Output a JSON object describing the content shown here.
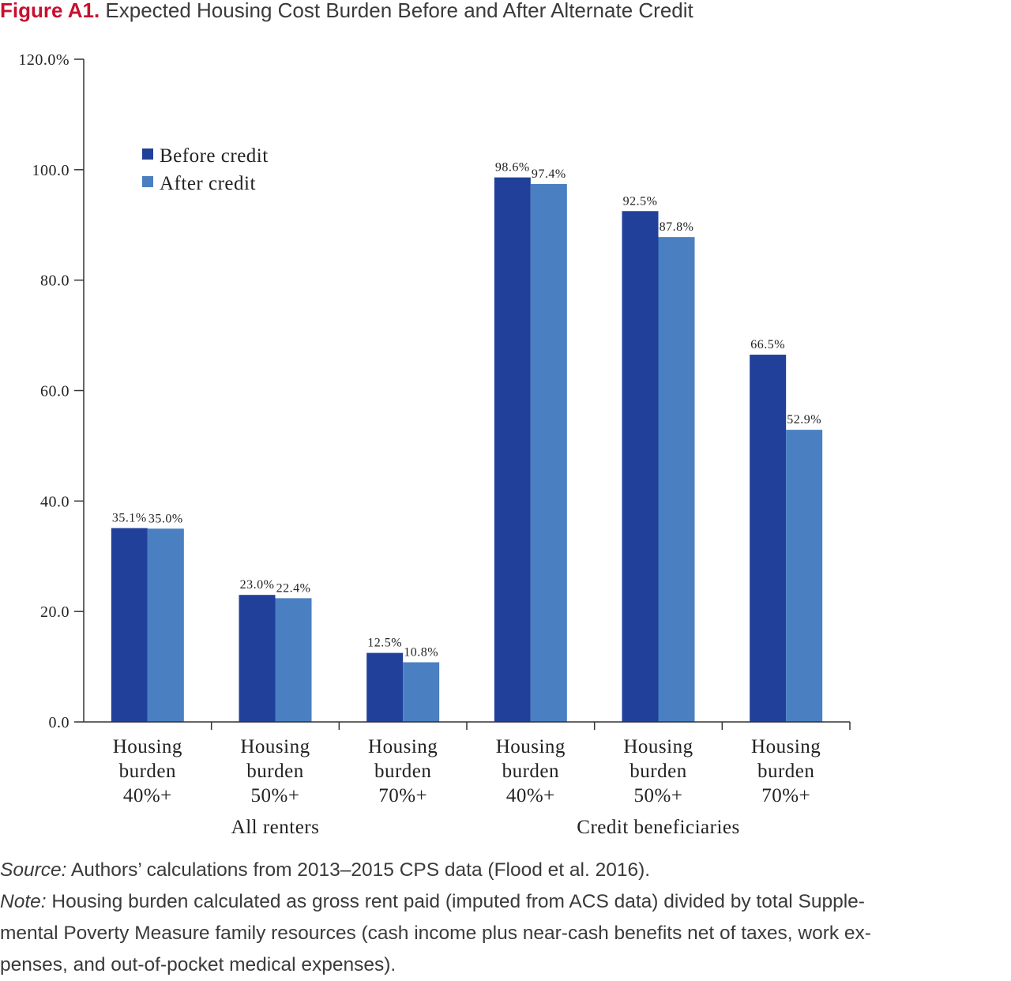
{
  "figure": {
    "label": "Figure A1.",
    "title": "Expected Housing Cost Burden Before and After Alternate Credit"
  },
  "chart_data": {
    "type": "bar",
    "categories": [
      "Housing burden 40%+",
      "Housing burden 50%+",
      "Housing burden 70%+",
      "Housing burden 40%+",
      "Housing burden 50%+",
      "Housing burden 70%+"
    ],
    "category_lines": [
      [
        "Housing",
        "burden",
        "40%+"
      ],
      [
        "Housing",
        "burden",
        "50%+"
      ],
      [
        "Housing",
        "burden",
        "70%+"
      ],
      [
        "Housing",
        "burden",
        "40%+"
      ],
      [
        "Housing",
        "burden",
        "50%+"
      ],
      [
        "Housing",
        "burden",
        "70%+"
      ]
    ],
    "groups": [
      {
        "label": "All renters",
        "categories": [
          0,
          1,
          2
        ]
      },
      {
        "label": "Credit beneficiaries",
        "categories": [
          3,
          4,
          5
        ]
      }
    ],
    "series": [
      {
        "name": "Before credit",
        "color": "#21409a",
        "values": [
          35.1,
          23.0,
          12.5,
          98.6,
          92.5,
          66.5
        ],
        "labels": [
          "35.1%",
          "23.0%",
          "12.5%",
          "98.6%",
          "92.5%",
          "66.5%"
        ]
      },
      {
        "name": "After credit",
        "color": "#4a7fc1",
        "values": [
          35.0,
          22.4,
          10.8,
          97.4,
          87.8,
          52.9
        ],
        "labels": [
          "35.0%",
          "22.4%",
          "10.8%",
          "97.4%",
          "87.8%",
          "52.9%"
        ]
      }
    ],
    "ylim": [
      0,
      120
    ],
    "yticks": [
      0,
      20,
      40,
      60,
      80,
      100,
      120
    ],
    "ytick_labels": [
      "0.0",
      "20.0",
      "40.0",
      "60.0",
      "80.0",
      "100.0",
      "120.0%"
    ],
    "grid": false,
    "legend_position": "top-left"
  },
  "source": {
    "label": "Source:",
    "text": " Authors’ calculations from 2013–2015 CPS data (Flood et al. 2016)."
  },
  "note": {
    "label": "Note:",
    "lines": [
      " Housing burden calculated as gross rent paid (imputed from ACS data) divided by total Supple-",
      "mental Poverty Measure family resources (cash income plus near-cash benefits net of taxes, work ex-",
      "penses, and out-of-pocket medical expenses)."
    ]
  }
}
